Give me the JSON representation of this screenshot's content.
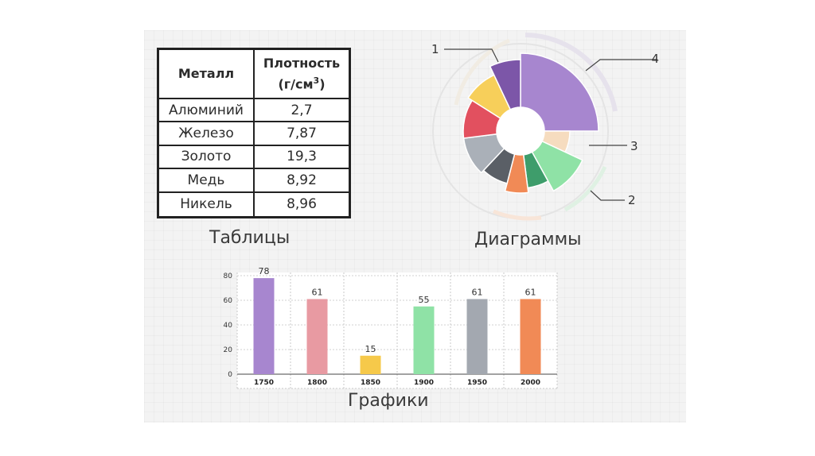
{
  "table": {
    "headers": [
      "Металл",
      "Плотность",
      "(г/см",
      "3",
      ")"
    ],
    "rows": [
      [
        "Алюминий",
        "2,7"
      ],
      [
        "Железо",
        "7,87"
      ],
      [
        "Золото",
        "19,3"
      ],
      [
        "Медь",
        "8,92"
      ],
      [
        "Никель",
        "8,96"
      ]
    ]
  },
  "captions": {
    "tables": "Таблицы",
    "diagrams": "Диаграммы",
    "graphs": "Графики"
  },
  "chart_data": [
    {
      "type": "pie",
      "variant": "donut",
      "callouts": [
        "1",
        "2",
        "3",
        "4"
      ],
      "slices": [
        {
          "value": 25,
          "radius": 0.98,
          "color": "#a786cf"
        },
        {
          "value": 7,
          "radius": 0.62,
          "color": "#f6dcbf"
        },
        {
          "value": 10,
          "radius": 0.86,
          "color": "#8fe2a6"
        },
        {
          "value": 6,
          "radius": 0.72,
          "color": "#3e9d6b"
        },
        {
          "value": 6,
          "radius": 0.78,
          "color": "#f18a56"
        },
        {
          "value": 8,
          "radius": 0.68,
          "color": "#5a5f66"
        },
        {
          "value": 11,
          "radius": 0.72,
          "color": "#aab0b8"
        },
        {
          "value": 11,
          "radius": 0.72,
          "color": "#e2505f"
        },
        {
          "value": 9,
          "radius": 0.78,
          "color": "#f7cf5a"
        },
        {
          "value": 7,
          "radius": 0.9,
          "color": "#7c56a8"
        }
      ]
    },
    {
      "type": "bar",
      "categories": [
        "1750",
        "1800",
        "1850",
        "1900",
        "1950",
        "2000"
      ],
      "values": [
        78,
        61,
        15,
        55,
        61,
        61
      ],
      "colors": [
        "#a786cf",
        "#e89aa2",
        "#f6c94a",
        "#8fe2a6",
        "#a3a8b0",
        "#f18a56"
      ],
      "yticks": [
        0,
        20,
        40,
        60,
        80
      ],
      "ylim": [
        0,
        80
      ],
      "title": "",
      "xlabel": "",
      "ylabel": ""
    }
  ]
}
